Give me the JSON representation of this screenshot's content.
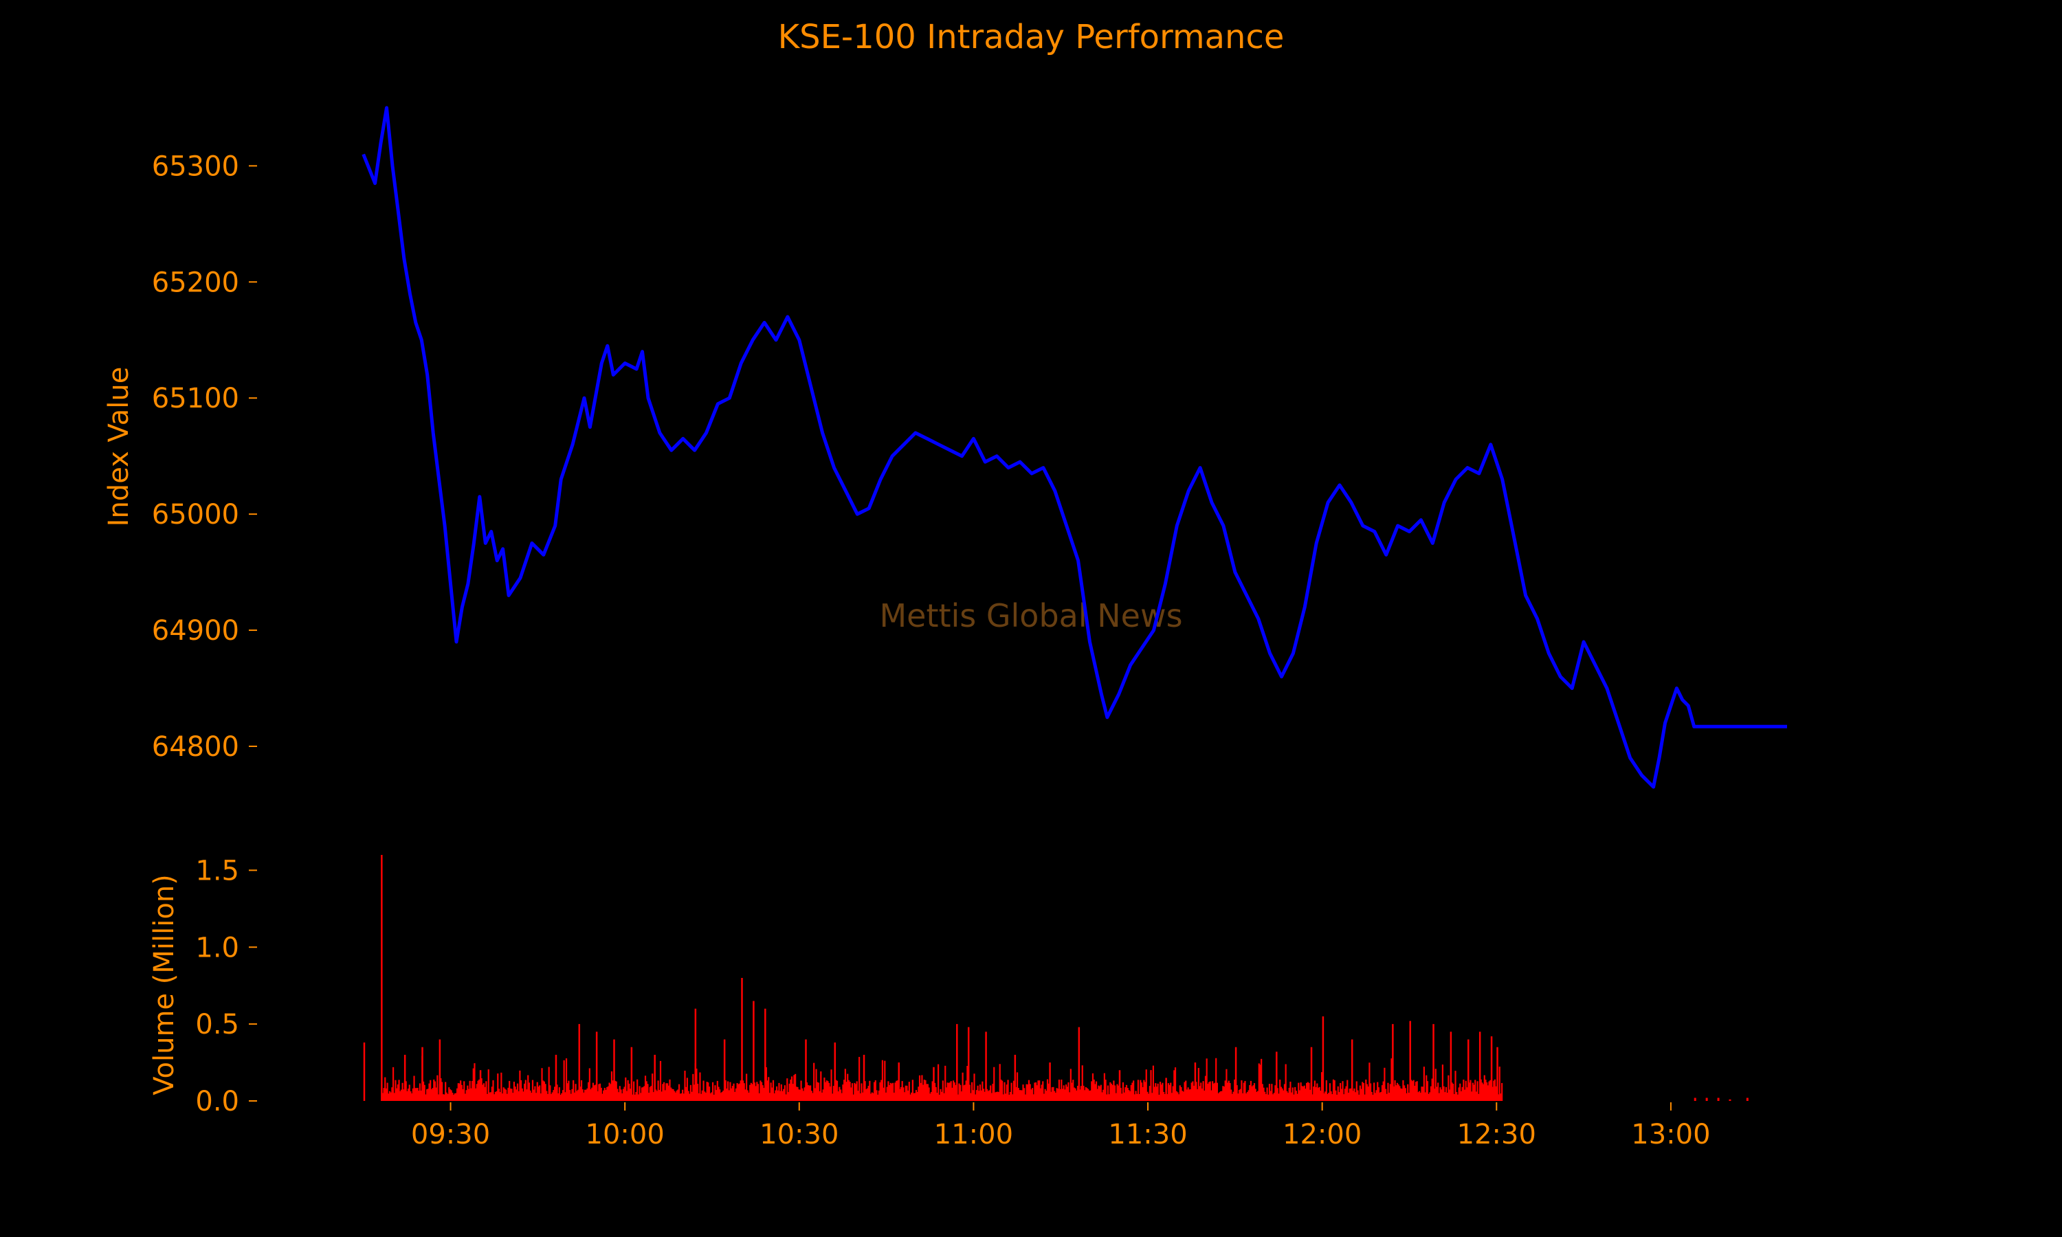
{
  "chart_data": [
    {
      "type": "line",
      "title": "KSE-100 Intraday Performance",
      "ylabel": "Index Value",
      "watermark": "Mettis Global News",
      "ylim": [
        64755,
        65360
      ],
      "yticks": [
        64800,
        64900,
        65000,
        65100,
        65200,
        65300
      ],
      "xlim": [
        "09:09",
        "13:20"
      ],
      "line_color": "#0000ff",
      "series": [
        {
          "points": [
            [
              "09:15",
              65310
            ],
            [
              "09:17",
              65285
            ],
            [
              "09:18",
              65320
            ],
            [
              "09:19",
              65350
            ],
            [
              "09:20",
              65300
            ],
            [
              "09:21",
              65260
            ],
            [
              "09:22",
              65220
            ],
            [
              "09:23",
              65190
            ],
            [
              "09:24",
              65165
            ],
            [
              "09:25",
              65150
            ],
            [
              "09:26",
              65120
            ],
            [
              "09:27",
              65070
            ],
            [
              "09:28",
              65030
            ],
            [
              "09:29",
              64990
            ],
            [
              "09:30",
              64940
            ],
            [
              "09:31",
              64890
            ],
            [
              "09:32",
              64920
            ],
            [
              "09:33",
              64940
            ],
            [
              "09:34",
              64975
            ],
            [
              "09:35",
              65015
            ],
            [
              "09:36",
              64975
            ],
            [
              "09:37",
              64985
            ],
            [
              "09:38",
              64960
            ],
            [
              "09:39",
              64970
            ],
            [
              "09:40",
              64930
            ],
            [
              "09:42",
              64945
            ],
            [
              "09:44",
              64975
            ],
            [
              "09:46",
              64965
            ],
            [
              "09:48",
              64990
            ],
            [
              "09:49",
              65030
            ],
            [
              "09:51",
              65060
            ],
            [
              "09:53",
              65100
            ],
            [
              "09:54",
              65075
            ],
            [
              "09:56",
              65130
            ],
            [
              "09:57",
              65145
            ],
            [
              "09:58",
              65120
            ],
            [
              "10:00",
              65130
            ],
            [
              "10:02",
              65125
            ],
            [
              "10:03",
              65140
            ],
            [
              "10:04",
              65100
            ],
            [
              "10:06",
              65070
            ],
            [
              "10:08",
              65055
            ],
            [
              "10:10",
              65065
            ],
            [
              "10:12",
              65055
            ],
            [
              "10:14",
              65070
            ],
            [
              "10:16",
              65095
            ],
            [
              "10:18",
              65100
            ],
            [
              "10:20",
              65130
            ],
            [
              "10:22",
              65150
            ],
            [
              "10:24",
              65165
            ],
            [
              "10:26",
              65150
            ],
            [
              "10:28",
              65170
            ],
            [
              "10:30",
              65150
            ],
            [
              "10:32",
              65110
            ],
            [
              "10:34",
              65070
            ],
            [
              "10:36",
              65040
            ],
            [
              "10:38",
              65020
            ],
            [
              "10:40",
              65000
            ],
            [
              "10:42",
              65005
            ],
            [
              "10:44",
              65030
            ],
            [
              "10:46",
              65050
            ],
            [
              "10:48",
              65060
            ],
            [
              "10:50",
              65070
            ],
            [
              "10:52",
              65065
            ],
            [
              "10:54",
              65060
            ],
            [
              "10:56",
              65055
            ],
            [
              "10:58",
              65050
            ],
            [
              "11:00",
              65065
            ],
            [
              "11:02",
              65045
            ],
            [
              "11:04",
              65050
            ],
            [
              "11:06",
              65040
            ],
            [
              "11:08",
              65045
            ],
            [
              "11:10",
              65035
            ],
            [
              "11:12",
              65040
            ],
            [
              "11:14",
              65020
            ],
            [
              "11:16",
              64990
            ],
            [
              "11:18",
              64960
            ],
            [
              "11:20",
              64890
            ],
            [
              "11:22",
              64845
            ],
            [
              "11:23",
              64825
            ],
            [
              "11:25",
              64845
            ],
            [
              "11:27",
              64870
            ],
            [
              "11:29",
              64885
            ],
            [
              "11:31",
              64900
            ],
            [
              "11:33",
              64940
            ],
            [
              "11:35",
              64990
            ],
            [
              "11:37",
              65020
            ],
            [
              "11:39",
              65040
            ],
            [
              "11:41",
              65010
            ],
            [
              "11:43",
              64990
            ],
            [
              "11:45",
              64950
            ],
            [
              "11:47",
              64930
            ],
            [
              "11:49",
              64910
            ],
            [
              "11:51",
              64880
            ],
            [
              "11:53",
              64860
            ],
            [
              "11:55",
              64880
            ],
            [
              "11:57",
              64920
            ],
            [
              "11:59",
              64975
            ],
            [
              "12:01",
              65010
            ],
            [
              "12:03",
              65025
            ],
            [
              "12:05",
              65010
            ],
            [
              "12:07",
              64990
            ],
            [
              "12:09",
              64985
            ],
            [
              "12:11",
              64965
            ],
            [
              "12:13",
              64990
            ],
            [
              "12:15",
              64985
            ],
            [
              "12:17",
              64995
            ],
            [
              "12:19",
              64975
            ],
            [
              "12:21",
              65010
            ],
            [
              "12:23",
              65030
            ],
            [
              "12:25",
              65040
            ],
            [
              "12:27",
              65035
            ],
            [
              "12:29",
              65060
            ],
            [
              "12:31",
              65030
            ],
            [
              "12:33",
              64980
            ],
            [
              "12:35",
              64930
            ],
            [
              "12:37",
              64910
            ],
            [
              "12:39",
              64880
            ],
            [
              "12:41",
              64860
            ],
            [
              "12:43",
              64850
            ],
            [
              "12:45",
              64890
            ],
            [
              "12:47",
              64870
            ],
            [
              "12:49",
              64850
            ],
            [
              "12:51",
              64820
            ],
            [
              "12:53",
              64790
            ],
            [
              "12:55",
              64775
            ],
            [
              "12:57",
              64765
            ],
            [
              "12:58",
              64790
            ],
            [
              "12:59",
              64820
            ],
            [
              "13:00",
              64835
            ],
            [
              "13:01",
              64850
            ],
            [
              "13:02",
              64840
            ],
            [
              "13:03",
              64835
            ],
            [
              "13:04",
              64817
            ],
            [
              "13:20",
              64817
            ]
          ]
        }
      ]
    },
    {
      "type": "bar",
      "ylabel": "Volume (Million)",
      "ylim": [
        0,
        1.6
      ],
      "yticks": [
        "0.0",
        "0.5",
        "1.0",
        "1.5"
      ],
      "xticks": [
        "09:30",
        "10:00",
        "10:30",
        "11:00",
        "11:30",
        "12:00",
        "12:30",
        "13:00"
      ],
      "bar_color": "#ff0000",
      "bars": [
        [
          "09:15",
          0.38
        ],
        [
          "09:18",
          1.6
        ],
        [
          "09:22",
          0.3
        ],
        [
          "09:25",
          0.35
        ],
        [
          "09:28",
          0.4
        ],
        [
          "09:35",
          0.2
        ],
        [
          "09:48",
          0.3
        ],
        [
          "09:52",
          0.5
        ],
        [
          "09:55",
          0.45
        ],
        [
          "09:58",
          0.4
        ],
        [
          "10:01",
          0.35
        ],
        [
          "10:05",
          0.3
        ],
        [
          "10:12",
          0.6
        ],
        [
          "10:17",
          0.4
        ],
        [
          "10:20",
          0.8
        ],
        [
          "10:22",
          0.65
        ],
        [
          "10:24",
          0.6
        ],
        [
          "10:31",
          0.4
        ],
        [
          "10:36",
          0.38
        ],
        [
          "10:41",
          0.3
        ],
        [
          "10:47",
          0.25
        ],
        [
          "10:53",
          0.22
        ],
        [
          "10:57",
          0.5
        ],
        [
          "10:59",
          0.48
        ],
        [
          "11:02",
          0.45
        ],
        [
          "11:07",
          0.3
        ],
        [
          "11:13",
          0.25
        ],
        [
          "11:18",
          0.48
        ],
        [
          "11:25",
          0.2
        ],
        [
          "11:33",
          0.15
        ],
        [
          "11:38",
          0.25
        ],
        [
          "11:45",
          0.35
        ],
        [
          "11:52",
          0.32
        ],
        [
          "11:58",
          0.35
        ],
        [
          "12:00",
          0.55
        ],
        [
          "12:05",
          0.4
        ],
        [
          "12:12",
          0.5
        ],
        [
          "12:15",
          0.52
        ],
        [
          "12:19",
          0.5
        ],
        [
          "12:22",
          0.45
        ],
        [
          "12:25",
          0.4
        ],
        [
          "12:27",
          0.45
        ],
        [
          "12:29",
          0.42
        ],
        [
          "12:30",
          0.35
        ]
      ],
      "dense_from": "09:18",
      "dense_to": "12:31",
      "after_close": [
        [
          "13:04",
          0.02
        ],
        [
          "13:06",
          0.02
        ],
        [
          "13:08",
          0.02
        ],
        [
          "13:10",
          0.01
        ],
        [
          "13:13",
          0.02
        ]
      ]
    }
  ]
}
